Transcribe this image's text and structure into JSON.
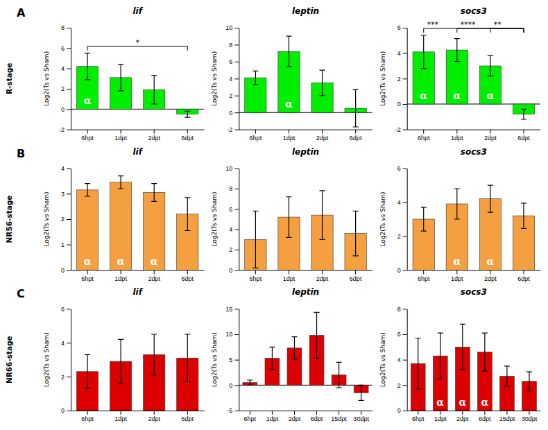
{
  "chart_data": [
    {
      "type": "bar",
      "title": "lif",
      "categories": [
        "6hpt",
        "1dpt",
        "2dpt",
        "6dpt"
      ],
      "values": [
        4.2,
        3.1,
        1.9,
        -0.5
      ],
      "errors": [
        1.3,
        1.3,
        1.4,
        0.3
      ],
      "color": "#00EE00",
      "ylim": [
        -2,
        8
      ],
      "yticks": [
        -2,
        0,
        2,
        4,
        6,
        8
      ],
      "ylabel": "Log2(Ts vs Sham)",
      "annotations": [
        {
          "text": "α",
          "category": "6hpt"
        },
        {
          "text": "*",
          "from": "6hpt",
          "to": "6dpt"
        }
      ],
      "panel_label": "A",
      "row_label": "R-stage"
    },
    {
      "type": "bar",
      "title": "leptin",
      "categories": [
        "6hpt",
        "1dpt",
        "2dpt",
        "6dpt"
      ],
      "values": [
        4.1,
        7.2,
        3.5,
        0.5
      ],
      "errors": [
        0.8,
        1.8,
        1.5,
        2.2
      ],
      "color": "#00EE00",
      "ylim": [
        -2,
        10
      ],
      "yticks": [
        -2,
        0,
        2,
        4,
        6,
        8,
        10
      ],
      "ylabel": "Log2(Ts vs Sham)",
      "annotations": [
        {
          "text": "α",
          "category": "1dpt"
        }
      ]
    },
    {
      "type": "bar",
      "title": "socs3",
      "categories": [
        "6hpt",
        "1dpt",
        "2dpt",
        "6dpt"
      ],
      "values": [
        4.1,
        4.25,
        3.0,
        -0.8
      ],
      "errors": [
        1.3,
        0.9,
        0.8,
        0.4
      ],
      "color": "#00EE00",
      "ylim": [
        -2,
        6
      ],
      "yticks": [
        -2,
        0,
        2,
        4,
        6
      ],
      "ylabel": "Log2(Ts vs Sham)",
      "annotations": [
        {
          "text": "α",
          "category": "6hpt"
        },
        {
          "text": "α",
          "category": "1dpt"
        },
        {
          "text": "α",
          "category": "2dpt"
        },
        {
          "text": "***",
          "from": "6hpt",
          "to": "6dpt"
        },
        {
          "text": "****",
          "from": "1dpt",
          "to": "6dpt"
        },
        {
          "text": "**",
          "from": "2dpt",
          "to": "6dpt"
        }
      ]
    },
    {
      "type": "bar",
      "title": "lif",
      "categories": [
        "6hpt",
        "1dpt",
        "2dpt",
        "6dpt"
      ],
      "values": [
        3.15,
        3.45,
        3.05,
        2.2
      ],
      "errors": [
        0.25,
        0.25,
        0.35,
        0.65
      ],
      "color": "#F5A040",
      "ylim": [
        0,
        4
      ],
      "yticks": [
        0,
        1,
        2,
        3,
        4
      ],
      "ylabel": "Log2(Ts vs Sham)",
      "annotations": [
        {
          "text": "α",
          "category": "6hpt"
        },
        {
          "text": "α",
          "category": "1dpt"
        },
        {
          "text": "α",
          "category": "2dpt"
        }
      ],
      "panel_label": "B",
      "row_label": "NR56-stage"
    },
    {
      "type": "bar",
      "title": "leptin",
      "categories": [
        "6hpt",
        "1dpt",
        "2dpt",
        "6dpt"
      ],
      "values": [
        3.0,
        5.2,
        5.4,
        3.6
      ],
      "errors": [
        2.8,
        2.0,
        2.4,
        2.2
      ],
      "color": "#F5A040",
      "ylim": [
        0,
        10
      ],
      "yticks": [
        0,
        2,
        4,
        6,
        8,
        10
      ],
      "ylabel": "Log2(Ts vs Sham)"
    },
    {
      "type": "bar",
      "title": "socs3",
      "categories": [
        "6hpt",
        "1dpt",
        "2dpt",
        "6dpt"
      ],
      "values": [
        3.0,
        3.9,
        4.2,
        3.2
      ],
      "errors": [
        0.7,
        0.9,
        0.8,
        0.75
      ],
      "color": "#F5A040",
      "ylim": [
        0,
        6
      ],
      "yticks": [
        0,
        2,
        4,
        6
      ],
      "ylabel": "Log2(Ts vs Sham)",
      "annotations": [
        {
          "text": "α",
          "category": "1dpt"
        },
        {
          "text": "α",
          "category": "2dpt"
        }
      ]
    },
    {
      "type": "bar",
      "title": "lif",
      "categories": [
        "6hpt",
        "1dpt",
        "2dpt",
        "6dpt"
      ],
      "values": [
        2.3,
        2.9,
        3.3,
        3.1
      ],
      "errors": [
        1.0,
        1.3,
        1.2,
        1.4
      ],
      "color": "#DD0000",
      "ylim": [
        0,
        6
      ],
      "yticks": [
        0,
        2,
        4,
        6
      ],
      "ylabel": "Log2(Ts vs Sham)",
      "panel_label": "C",
      "row_label": "NR66-stage"
    },
    {
      "type": "bar",
      "title": "leptin",
      "categories": [
        "6hpt",
        "1dpt",
        "2dpt",
        "6dpt",
        "15dpt",
        "30dpt"
      ],
      "values": [
        0.5,
        5.3,
        7.3,
        9.8,
        2.0,
        -1.5
      ],
      "errors": [
        0.5,
        2.2,
        2.2,
        4.5,
        2.5,
        1.5
      ],
      "color": "#DD0000",
      "ylim": [
        -5,
        15
      ],
      "yticks": [
        -5,
        0,
        5,
        10,
        15
      ],
      "ylabel": "Log2(Ts vs Sham)"
    },
    {
      "type": "bar",
      "title": "socs3",
      "categories": [
        "6hpt",
        "1dpt",
        "2dpt",
        "6dpt",
        "15dpt",
        "30dpt"
      ],
      "values": [
        3.7,
        4.3,
        5.0,
        4.6,
        2.7,
        2.3
      ],
      "errors": [
        2.0,
        1.8,
        1.8,
        1.5,
        0.8,
        0.75
      ],
      "color": "#DD0000",
      "ylim": [
        0,
        8
      ],
      "yticks": [
        0,
        2,
        4,
        6,
        8
      ],
      "ylabel": "Log2(Ts vs Sham)",
      "annotations": [
        {
          "text": "α",
          "category": "1dpt"
        },
        {
          "text": "α",
          "category": "2dpt"
        },
        {
          "text": "α",
          "category": "6dpt"
        }
      ]
    }
  ]
}
